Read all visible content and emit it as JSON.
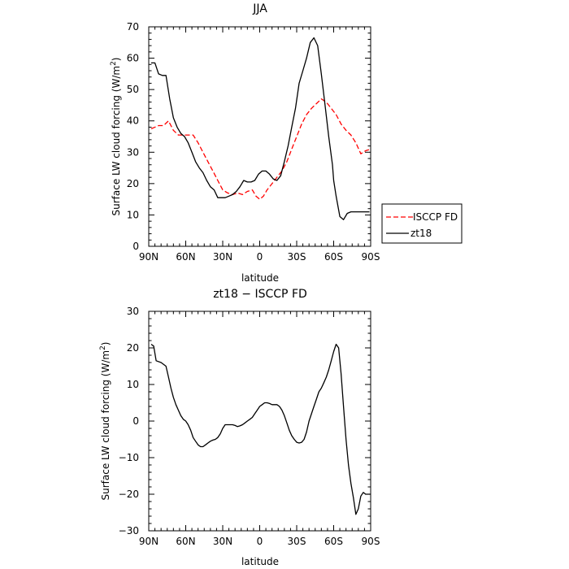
{
  "chart_data": [
    {
      "type": "line",
      "title": "JJA",
      "xlabel": "latitude",
      "ylabel": "Surface LW cloud forcing (W/m²)",
      "ylabel_main": "Surface LW cloud forcing (W/m",
      "ylabel_sup": "2",
      "ylabel_end": ")",
      "xlim": [
        -90,
        90
      ],
      "ylim": [
        0,
        70
      ],
      "xticks": [
        -90,
        -60,
        -30,
        0,
        30,
        60,
        90
      ],
      "xticklabels": [
        "90N",
        "60N",
        "30N",
        "0",
        "30S",
        "60S",
        "90S"
      ],
      "yticks": [
        0,
        10,
        20,
        30,
        40,
        50,
        60,
        70
      ],
      "yticklabels": [
        "0",
        "10",
        "20",
        "30",
        "40",
        "50",
        "60",
        "70"
      ],
      "legend_position": "right",
      "series": [
        {
          "name": "ISCCP FD",
          "color": "#ff0000",
          "dash": "dashed",
          "x": [
            -88,
            -82,
            -78,
            -74,
            -70,
            -66,
            -62,
            -58,
            -54,
            -50,
            -46,
            -42,
            -38,
            -34,
            -30,
            -26,
            -22,
            -18,
            -14,
            -10,
            -6,
            -3,
            0,
            3,
            6,
            10,
            14,
            18,
            22,
            26,
            30,
            34,
            38,
            42,
            46,
            50,
            54,
            58,
            62,
            66,
            70,
            74,
            78,
            82,
            86,
            90
          ],
          "y": [
            37.5,
            38.5,
            38.5,
            40,
            37,
            35.5,
            35.5,
            35.5,
            35.5,
            33,
            30,
            27,
            24,
            21,
            18,
            17,
            16.5,
            17,
            16.5,
            17.5,
            18,
            16,
            15,
            16,
            18,
            20,
            22,
            24,
            27,
            31,
            35,
            39,
            42,
            44,
            45.5,
            47,
            46,
            44,
            42,
            39,
            37,
            35.5,
            33,
            29.5,
            30.5,
            31
          ]
        },
        {
          "name": "zt18",
          "color": "#000000",
          "dash": "solid",
          "x": [
            -88,
            -85,
            -82,
            -79,
            -76,
            -73,
            -70,
            -67,
            -64,
            -61,
            -58,
            -55,
            -52,
            -49,
            -46,
            -43,
            -40,
            -37,
            -34,
            -31,
            -28,
            -25,
            -22,
            -19,
            -16,
            -13,
            -10,
            -7,
            -4,
            -1,
            2,
            5,
            8,
            11,
            14,
            17,
            20,
            23,
            26,
            29,
            32,
            35,
            38,
            41,
            44,
            47,
            50,
            53,
            56,
            59,
            60,
            62,
            65,
            68,
            71,
            74,
            77,
            80,
            83,
            86,
            89
          ],
          "y": [
            58.5,
            58.5,
            55,
            54.5,
            54.5,
            47,
            41,
            38,
            36,
            35,
            33,
            30,
            27,
            25,
            23.5,
            21,
            19,
            18,
            15.5,
            15.5,
            15.5,
            16,
            16.5,
            17.5,
            19,
            21,
            20.5,
            20.5,
            21,
            23,
            24,
            24,
            23,
            21.5,
            21,
            22.5,
            27,
            32,
            38,
            44,
            52,
            56,
            60,
            65,
            66.5,
            64,
            55,
            45,
            35,
            26,
            21,
            16,
            9.5,
            8.5,
            10.5,
            11,
            11,
            11,
            11,
            11,
            11
          ]
        }
      ]
    },
    {
      "type": "line",
      "title": "zt18 − ISCCP FD",
      "xlabel": "latitude",
      "ylabel": "Surface LW cloud forcing (W/m²)",
      "ylabel_main": "Surface LW cloud forcing (W/m",
      "ylabel_sup": "2",
      "ylabel_end": ")",
      "xlim": [
        -90,
        90
      ],
      "ylim": [
        -30,
        30
      ],
      "xticks": [
        -90,
        -60,
        -30,
        0,
        30,
        60,
        90
      ],
      "xticklabels": [
        "90N",
        "60N",
        "30N",
        "0",
        "30S",
        "60S",
        "90S"
      ],
      "yticks": [
        -30,
        -20,
        -10,
        0,
        10,
        20,
        30
      ],
      "yticklabels": [
        "−30",
        "−20",
        "−10",
        "0",
        "10",
        "20",
        "30"
      ],
      "series": [
        {
          "color": "#000000",
          "dash": "solid",
          "x": [
            -88,
            -86,
            -84,
            -80,
            -76,
            -74,
            -72,
            -70,
            -68,
            -66,
            -64,
            -62,
            -60,
            -58,
            -56,
            -54,
            -52,
            -50,
            -48,
            -46,
            -44,
            -42,
            -40,
            -38,
            -36,
            -34,
            -32,
            -30,
            -28,
            -26,
            -24,
            -22,
            -20,
            -18,
            -16,
            -14,
            -12,
            -10,
            -8,
            -6,
            -4,
            -2,
            0,
            2,
            4,
            6,
            8,
            10,
            12,
            14,
            16,
            18,
            20,
            22,
            24,
            26,
            28,
            30,
            32,
            34,
            36,
            38,
            40,
            42,
            44,
            46,
            48,
            50,
            52,
            54,
            56,
            58,
            60,
            62,
            64,
            66,
            68,
            70,
            72,
            74,
            76,
            78,
            80,
            82,
            84,
            86,
            88,
            90
          ],
          "y": [
            21,
            20.5,
            16.5,
            16,
            15,
            12,
            9,
            6.5,
            4.5,
            3,
            1.5,
            0.5,
            0,
            -1,
            -2.5,
            -4.5,
            -5.5,
            -6.5,
            -7,
            -7,
            -6.5,
            -6,
            -5.5,
            -5.2,
            -5,
            -4.5,
            -3.5,
            -2,
            -1,
            -1,
            -1,
            -1,
            -1.2,
            -1.5,
            -1.3,
            -1,
            -0.5,
            0,
            0.5,
            1,
            2,
            3,
            4,
            4.5,
            5,
            5,
            4.8,
            4.5,
            4.5,
            4.5,
            4,
            3,
            1.5,
            -0.5,
            -2.5,
            -4,
            -5,
            -5.8,
            -6,
            -5.8,
            -5,
            -3,
            0,
            2,
            4,
            6,
            8,
            9,
            10.5,
            12,
            14,
            16.5,
            19,
            21,
            20,
            13,
            4,
            -5,
            -12,
            -17,
            -21,
            -25.5,
            -24,
            -20.5,
            -19.5,
            -20,
            -20,
            -20
          ]
        }
      ]
    }
  ]
}
